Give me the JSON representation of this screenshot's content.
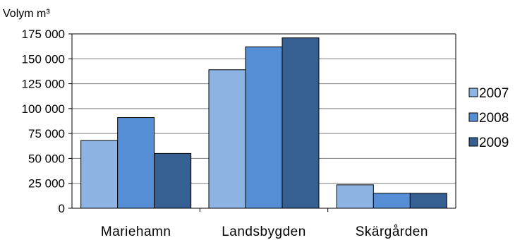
{
  "chart_data": {
    "type": "bar",
    "title": "",
    "ylabel": "Volym m³",
    "xlabel": "",
    "categories": [
      "Mariehamn",
      "Landsbygden",
      "Skärgården"
    ],
    "series": [
      {
        "name": "2007",
        "values": [
          68000,
          139000,
          23500
        ],
        "color": "#8EB4E3"
      },
      {
        "name": "2008",
        "values": [
          91000,
          162000,
          15000
        ],
        "color": "#558ED5"
      },
      {
        "name": "2009",
        "values": [
          55000,
          171000,
          15000
        ],
        "color": "#366092"
      }
    ],
    "ylim": [
      0,
      175000
    ],
    "yticks": [
      0,
      25000,
      50000,
      75000,
      100000,
      125000,
      150000,
      175000
    ],
    "ytick_labels": [
      "0",
      "25 000",
      "50 000",
      "75 000",
      "100 000",
      "125 000",
      "150 000",
      "175 000"
    ],
    "grid": true,
    "legend_position": "right"
  }
}
